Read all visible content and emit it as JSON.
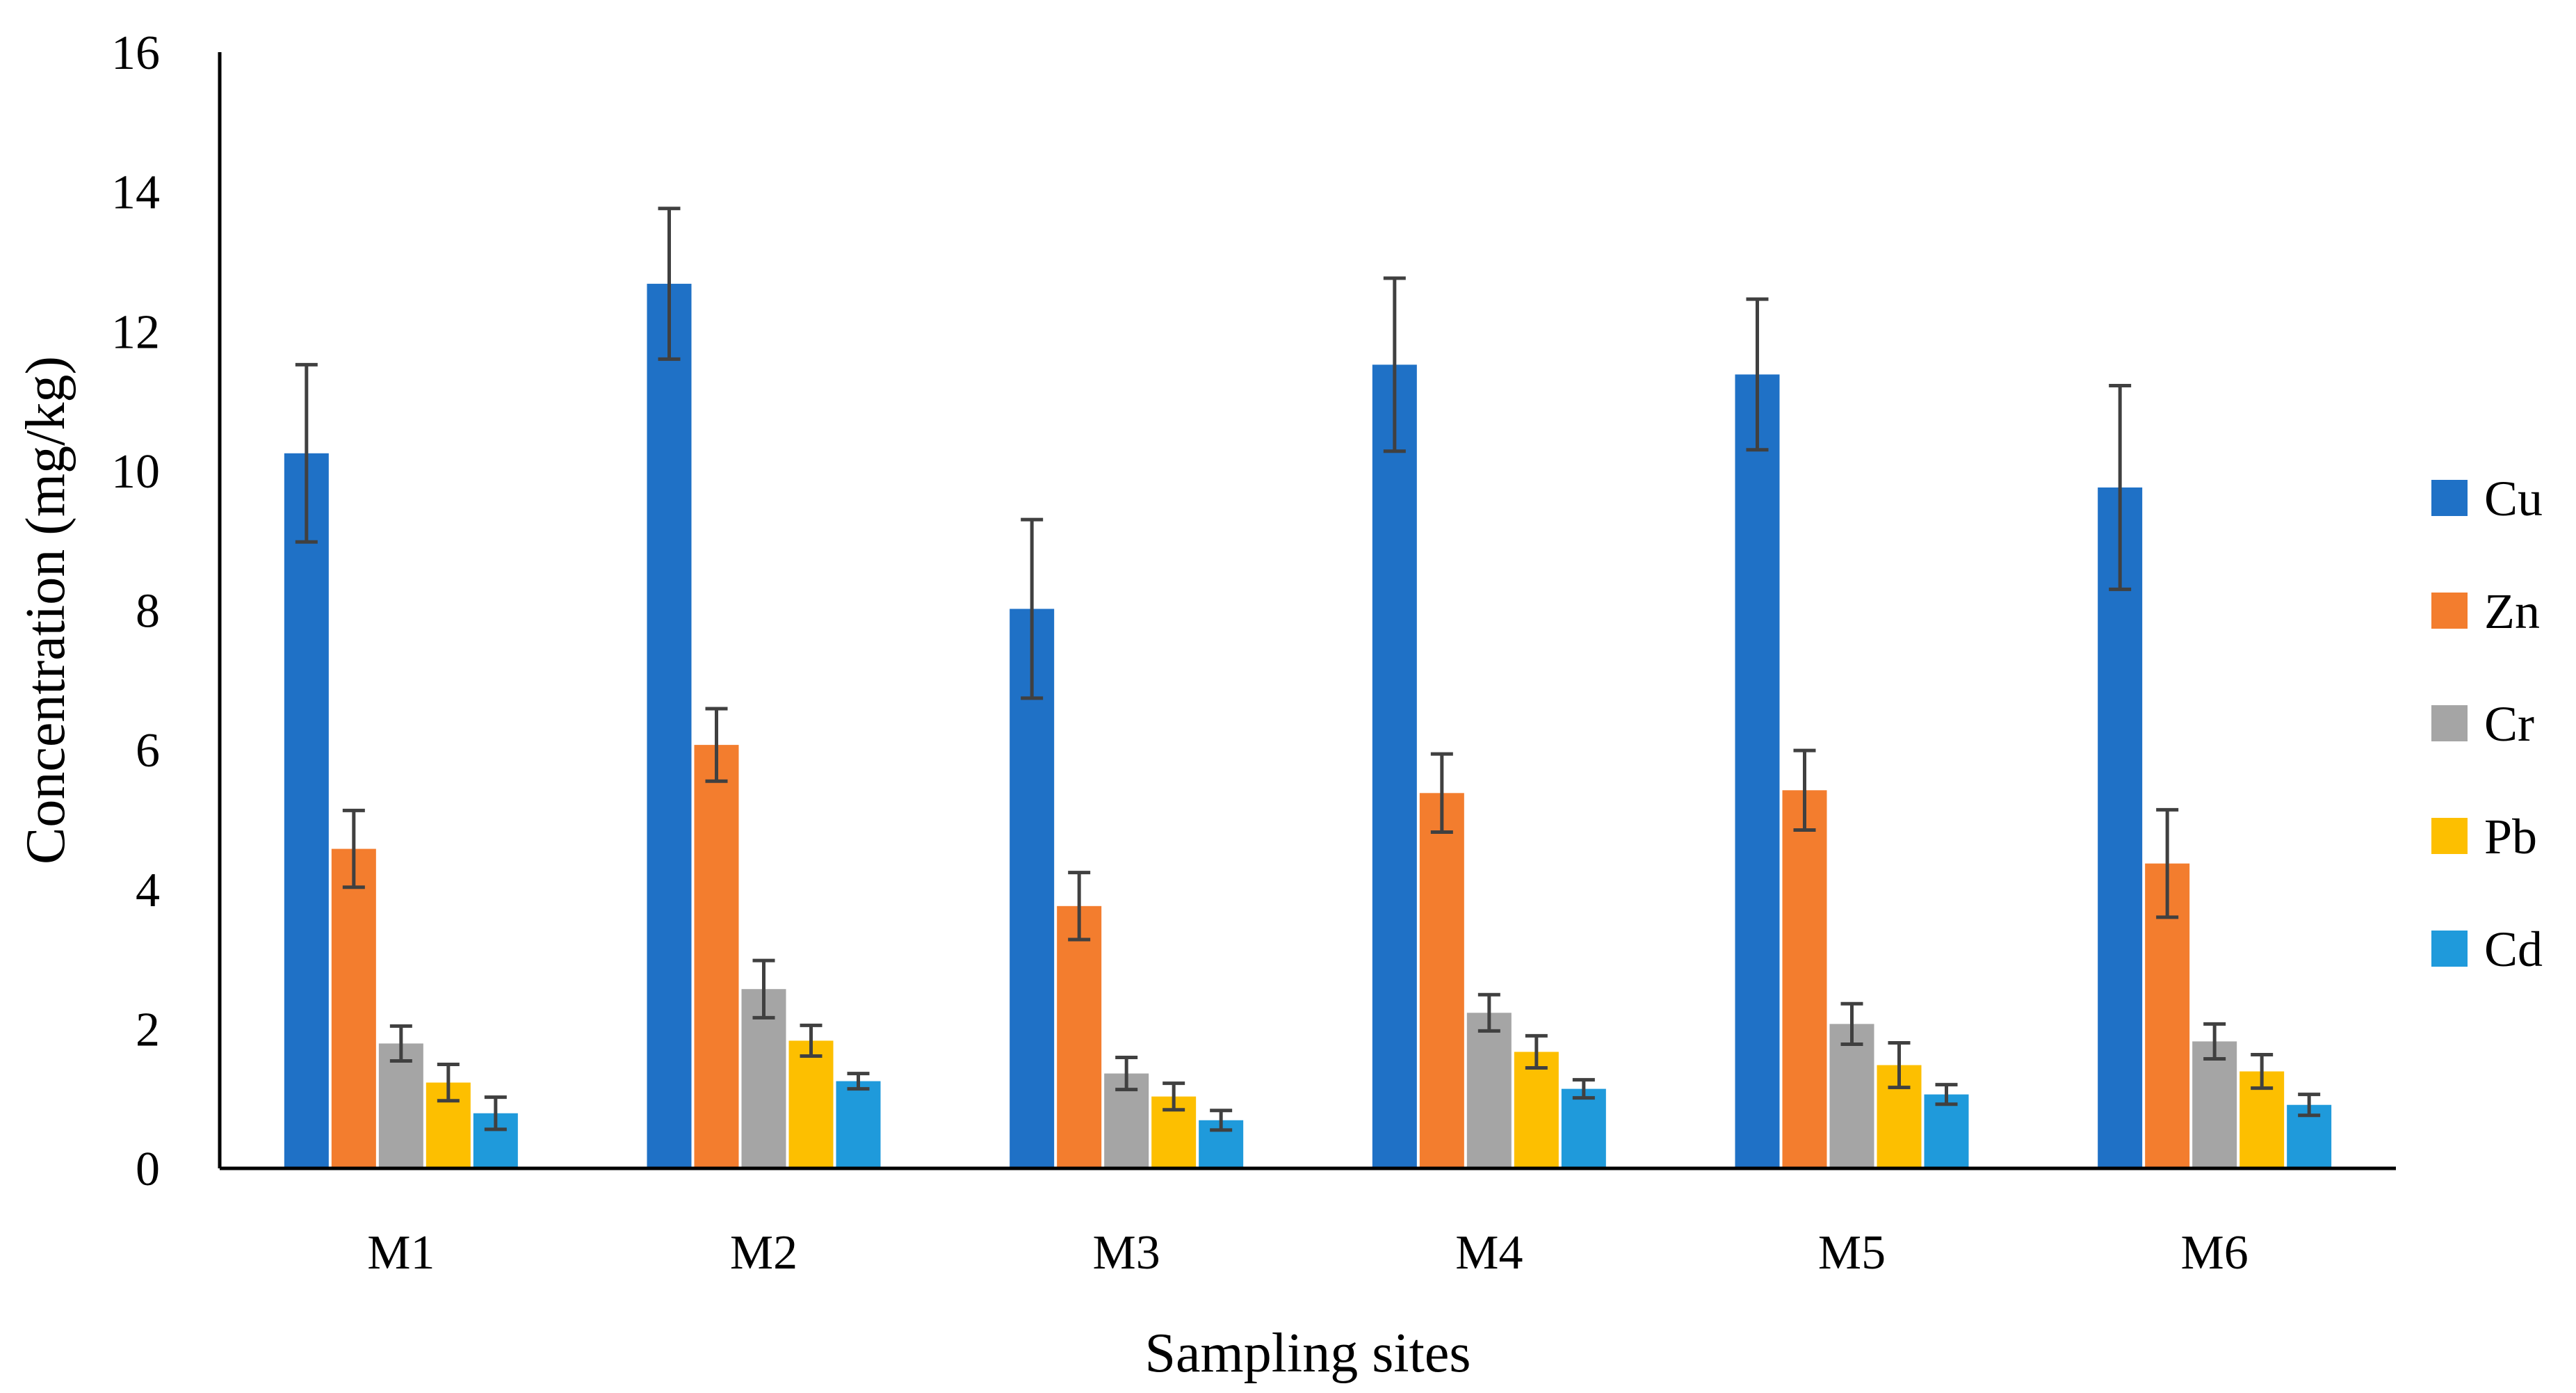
{
  "chart_data": {
    "type": "bar",
    "title": "",
    "xlabel": "Sampling sites",
    "ylabel": "Concentration (mg/kg)",
    "ylim": [
      0,
      16
    ],
    "yticks": [
      "0",
      "2",
      "4",
      "6",
      "8",
      "10",
      "12",
      "14",
      "16"
    ],
    "grid": false,
    "legend_position": "right",
    "categories": [
      "M1",
      "M2",
      "M3",
      "M4",
      "M5",
      "M6"
    ],
    "series": [
      {
        "name": "Cu",
        "color": "#1F71C6",
        "values": [
          10.25,
          12.68,
          8.02,
          11.52,
          11.38,
          9.76
        ],
        "errors": [
          1.27,
          1.08,
          1.28,
          1.24,
          1.08,
          1.46
        ]
      },
      {
        "name": "Zn",
        "color": "#F37D2E",
        "values": [
          4.58,
          6.07,
          3.76,
          5.38,
          5.42,
          4.37
        ],
        "errors": [
          0.55,
          0.52,
          0.48,
          0.56,
          0.57,
          0.77
        ]
      },
      {
        "name": "Cr",
        "color": "#A5A5A5",
        "values": [
          1.79,
          2.57,
          1.36,
          2.23,
          2.07,
          1.82
        ],
        "errors": [
          0.25,
          0.41,
          0.23,
          0.26,
          0.29,
          0.25
        ]
      },
      {
        "name": "Pb",
        "color": "#FDBF00",
        "values": [
          1.23,
          1.83,
          1.03,
          1.67,
          1.48,
          1.39
        ],
        "errors": [
          0.26,
          0.22,
          0.19,
          0.23,
          0.32,
          0.24
        ]
      },
      {
        "name": "Cd",
        "color": "#1F9ADB",
        "values": [
          0.79,
          1.25,
          0.69,
          1.14,
          1.06,
          0.91
        ],
        "errors": [
          0.23,
          0.11,
          0.14,
          0.13,
          0.14,
          0.15
        ]
      }
    ]
  }
}
